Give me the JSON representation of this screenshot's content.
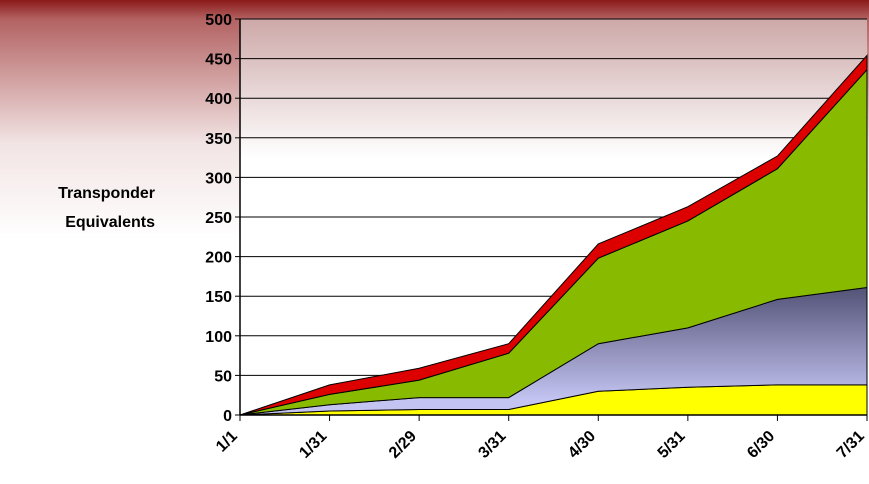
{
  "chart_data": {
    "type": "area",
    "stacked": true,
    "title": "",
    "xlabel": "",
    "ylabel": "Transponder Equivalents",
    "ylabel_lines": [
      "Transponder",
      "Equivalents"
    ],
    "x": [
      "1/1",
      "1/31",
      "2/29",
      "3/31",
      "4/30",
      "5/31",
      "6/30",
      "7/31"
    ],
    "ylim": [
      0,
      500
    ],
    "yticks": [
      0,
      50,
      100,
      150,
      200,
      250,
      300,
      350,
      400,
      450,
      500
    ],
    "grid": true,
    "legend": "none",
    "background": {
      "top": "#8B1A1A",
      "bottom": "#ffffff"
    },
    "series": [
      {
        "color": "#ffff00",
        "values": [
          0,
          5,
          7,
          7,
          30,
          35,
          38,
          38
        ]
      },
      {
        "color": "#c4c4f2",
        "color_bottom": "#c4c4f2",
        "color_top": "#55557a",
        "values": [
          0,
          8,
          15,
          15,
          60,
          75,
          108,
          123
        ]
      },
      {
        "color": "#88bb00",
        "values": [
          0,
          13,
          22,
          56,
          108,
          135,
          165,
          275
        ]
      },
      {
        "color": "#dd0000",
        "values": [
          0,
          12,
          15,
          12,
          18,
          18,
          16,
          18
        ]
      }
    ]
  }
}
